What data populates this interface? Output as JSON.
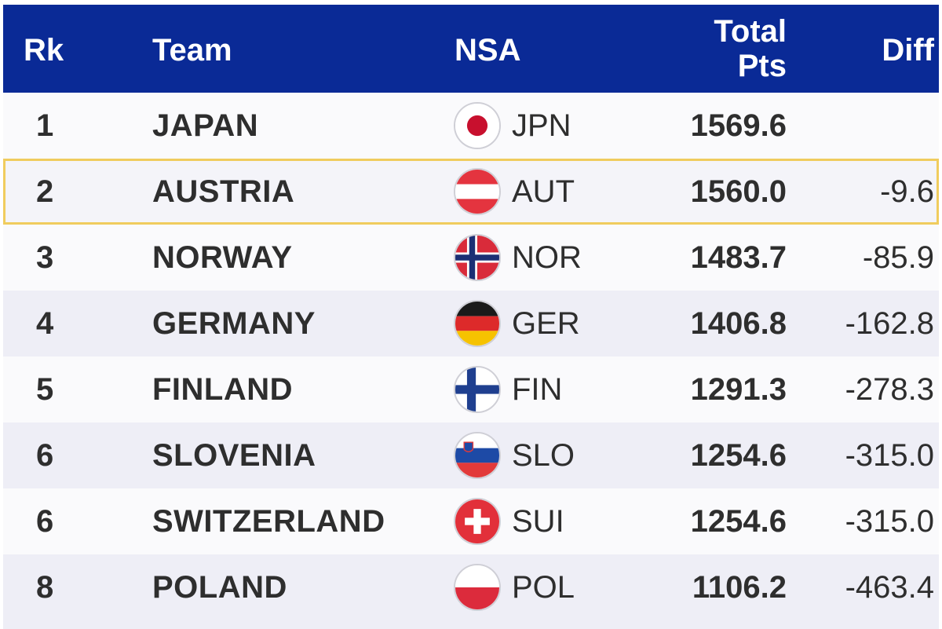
{
  "header": {
    "rank": "Rk",
    "team": "Team",
    "nsa": "NSA",
    "total_line1": "Total",
    "total_line2": "Pts",
    "diff": "Diff"
  },
  "rows": [
    {
      "rank": "1",
      "team": "JAPAN",
      "code": "JPN",
      "points": "1569.6",
      "diff": "",
      "flag": "japan-flag-icon"
    },
    {
      "rank": "2",
      "team": "AUSTRIA",
      "code": "AUT",
      "points": "1560.0",
      "diff": "-9.6",
      "flag": "austria-flag-icon"
    },
    {
      "rank": "3",
      "team": "NORWAY",
      "code": "NOR",
      "points": "1483.7",
      "diff": "-85.9",
      "flag": "norway-flag-icon"
    },
    {
      "rank": "4",
      "team": "GERMANY",
      "code": "GER",
      "points": "1406.8",
      "diff": "-162.8",
      "flag": "germany-flag-icon"
    },
    {
      "rank": "5",
      "team": "FINLAND",
      "code": "FIN",
      "points": "1291.3",
      "diff": "-278.3",
      "flag": "finland-flag-icon"
    },
    {
      "rank": "6",
      "team": "SLOVENIA",
      "code": "SLO",
      "points": "1254.6",
      "diff": "-315.0",
      "flag": "slovenia-flag-icon"
    },
    {
      "rank": "6",
      "team": "SWITZERLAND",
      "code": "SUI",
      "points": "1254.6",
      "diff": "-315.0",
      "flag": "switzerland-flag-icon"
    },
    {
      "rank": "8",
      "team": "POLAND",
      "code": "POL",
      "points": "1106.2",
      "diff": "-463.4",
      "flag": "poland-flag-icon"
    }
  ],
  "colors": {
    "header_bg": "#0a2a96",
    "highlight_border": "#f0cc5e",
    "alt_row": "#eeeef6"
  }
}
